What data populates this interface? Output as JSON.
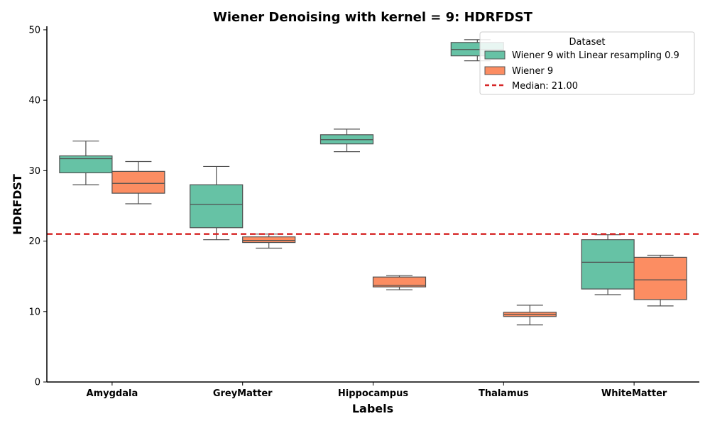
{
  "chart_data": {
    "type": "box",
    "title": "Wiener Denoising with kernel = 9: HDRFDST",
    "xlabel": "Labels",
    "ylabel": "HDRFDST",
    "ylim": [
      0,
      50.5
    ],
    "yticks": [
      0,
      10,
      20,
      30,
      40,
      50
    ],
    "grid": false,
    "categories": [
      "Amygdala",
      "GreyMatter",
      "Hippocampus",
      "Thalamus",
      "WhiteMatter"
    ],
    "legend": {
      "title": "Dataset",
      "placement": "top-right"
    },
    "series": [
      {
        "name": "Wiener 9 with Linear resampling 0.9",
        "color": "#66c2a5",
        "boxes": [
          {
            "whisker_low": 28.0,
            "q1": 29.7,
            "median": 31.7,
            "q3": 32.1,
            "whisker_high": 34.2
          },
          {
            "whisker_low": 20.2,
            "q1": 21.9,
            "median": 25.2,
            "q3": 28.0,
            "whisker_high": 30.6
          },
          {
            "whisker_low": 32.7,
            "q1": 33.8,
            "median": 34.4,
            "q3": 35.1,
            "whisker_high": 35.9
          },
          {
            "whisker_low": 45.6,
            "q1": 46.3,
            "median": 47.2,
            "q3": 48.2,
            "whisker_high": 48.6
          },
          {
            "whisker_low": 12.4,
            "q1": 13.2,
            "median": 17.0,
            "q3": 20.2,
            "whisker_high": 20.9
          }
        ]
      },
      {
        "name": "Wiener 9",
        "color": "#fc8d62",
        "boxes": [
          {
            "whisker_low": 25.3,
            "q1": 26.8,
            "median": 28.2,
            "q3": 29.9,
            "whisker_high": 31.3
          },
          {
            "whisker_low": 19.0,
            "q1": 19.8,
            "median": 20.1,
            "q3": 20.6,
            "whisker_high": 21.0
          },
          {
            "whisker_low": 13.1,
            "q1": 13.5,
            "median": 13.7,
            "q3": 14.9,
            "whisker_high": 15.1
          },
          {
            "whisker_low": 8.1,
            "q1": 9.3,
            "median": 9.6,
            "q3": 9.9,
            "whisker_high": 10.9
          },
          {
            "whisker_low": 10.8,
            "q1": 11.7,
            "median": 14.5,
            "q3": 17.7,
            "whisker_high": 18.0
          }
        ]
      }
    ],
    "reference_line": {
      "label": "Median: 21.00",
      "value": 21.0,
      "color": "#d62728",
      "style": "dashed"
    }
  }
}
